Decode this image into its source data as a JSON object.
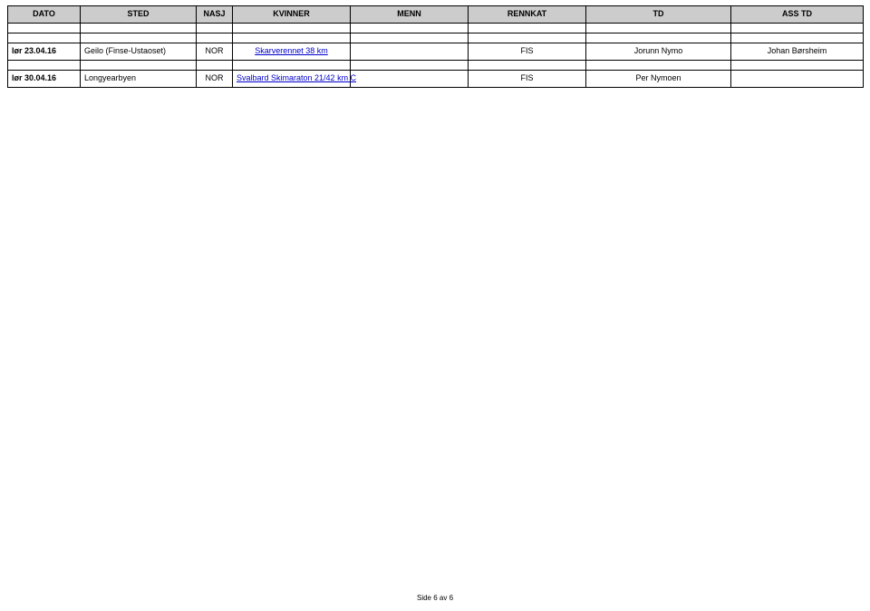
{
  "header": {
    "dato": "DATO",
    "sted": "STED",
    "nasj": "NASJ",
    "kvinner": "KVINNER",
    "menn": "MENN",
    "rennkat": "RENNKAT",
    "td": "TD",
    "asstd": "ASS TD"
  },
  "rows": [
    {
      "dato": "lør 23.04.16",
      "sted": "Geilo (Finse-Ustaoset)",
      "nasj": "NOR",
      "kvinner_link": "Skarverennet 38 km",
      "menn": "",
      "rennkat": "FIS",
      "td": "Jorunn Nymo",
      "asstd": "Johan Børsheim"
    },
    {
      "dato": "lør 30.04.16",
      "sted": "Longyearbyen",
      "nasj": "NOR",
      "kvinner_link": "Svalbard Skimaraton 21/42 km C",
      "menn": "",
      "rennkat": "FIS",
      "td": "Per Nymoen",
      "asstd": ""
    }
  ],
  "footer": "Side 6 av 6"
}
